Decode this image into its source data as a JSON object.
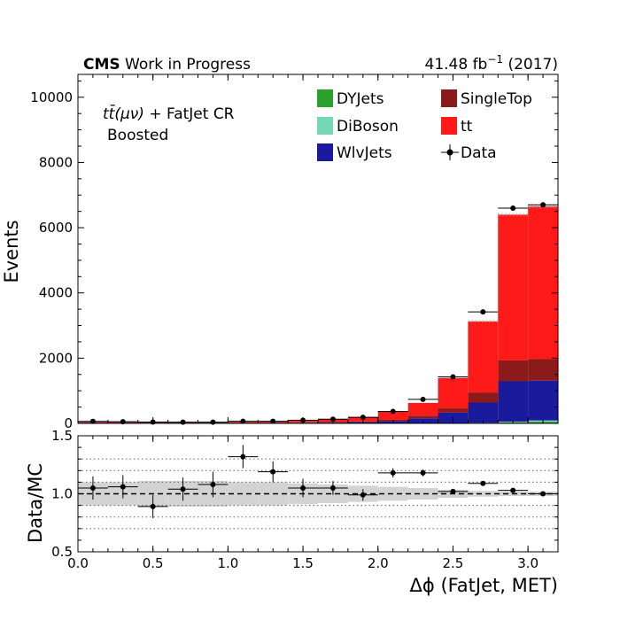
{
  "header": {
    "experiment": "CMS",
    "status": "Work in Progress",
    "lumi": "41.48 fb",
    "lumi_exp": "−1",
    "year": "(2017)"
  },
  "annotation": {
    "line1_math": "tt̄(μν)",
    "line1_rest": " + FatJet CR",
    "line2": "Boosted"
  },
  "colors": {
    "DYJets": "#2ca02c",
    "DiBoson": "#76d7b4",
    "WlvJets": "#1a1a9c",
    "SingleTop": "#8b1a1a",
    "tt": "#ff1a1a",
    "Data": "#000000",
    "uncertainty_band": "#d3d3d3"
  },
  "legend": {
    "placement": "top-right",
    "entries": [
      {
        "label": "DYJets",
        "key": "DYJets",
        "kind": "patch"
      },
      {
        "label": "DiBoson",
        "key": "DiBoson",
        "kind": "patch"
      },
      {
        "label": "WlvJets",
        "key": "WlvJets",
        "kind": "patch"
      },
      {
        "label": "SingleTop",
        "key": "SingleTop",
        "kind": "patch"
      },
      {
        "label": "tt",
        "key": "tt",
        "kind": "patch"
      },
      {
        "label": "Data",
        "key": "Data",
        "kind": "marker"
      }
    ]
  },
  "chart_data": [
    {
      "type": "bar",
      "stacked": true,
      "xlabel": "Δϕ (FatJet, MET)",
      "ylabel": "Events",
      "xlim": [
        0.0,
        3.2
      ],
      "ylim": [
        0,
        10700
      ],
      "yticks": [
        0,
        2000,
        4000,
        6000,
        8000,
        10000
      ],
      "bin_edges": [
        0.0,
        0.2,
        0.4,
        0.6,
        0.8,
        1.0,
        1.2,
        1.4,
        1.6,
        1.8,
        2.0,
        2.2,
        2.4,
        2.6,
        2.8,
        3.0,
        3.2
      ],
      "series": [
        {
          "name": "DYJets",
          "values": [
            1,
            1,
            1,
            1,
            1,
            1,
            1,
            1,
            1,
            2,
            3,
            4,
            6,
            10,
            30,
            50
          ]
        },
        {
          "name": "DiBoson",
          "values": [
            1,
            1,
            1,
            1,
            1,
            1,
            1,
            1,
            1,
            1,
            2,
            3,
            4,
            8,
            20,
            40
          ]
        },
        {
          "name": "WlvJets",
          "values": [
            20,
            18,
            15,
            13,
            14,
            15,
            16,
            18,
            22,
            35,
            60,
            150,
            320,
            620,
            1240,
            1220
          ]
        },
        {
          "name": "SingleTop",
          "values": [
            8,
            8,
            8,
            8,
            8,
            10,
            12,
            15,
            20,
            25,
            45,
            80,
            130,
            310,
            640,
            660
          ]
        },
        {
          "name": "tt",
          "values": [
            30,
            20,
            15,
            12,
            10,
            22,
            25,
            45,
            80,
            130,
            260,
            390,
            930,
            2180,
            4470,
            4680
          ]
        }
      ],
      "data": {
        "name": "Data",
        "values": [
          62,
          52,
          41,
          38,
          36,
          65,
          65,
          95,
          130,
          188,
          365,
          735,
          1425,
          3420,
          6600,
          6700
        ]
      }
    },
    {
      "type": "scatter",
      "ylabel": "Data/MC",
      "xlim": [
        0.0,
        3.2
      ],
      "ylim": [
        0.5,
        1.5
      ],
      "yticks": [
        0.5,
        1.0,
        1.5
      ],
      "xticks": [
        0.0,
        0.5,
        1.0,
        1.5,
        2.0,
        2.5,
        3.0
      ],
      "reference_lines": [
        0.7,
        0.8,
        0.9,
        1.1,
        1.2,
        1.3
      ],
      "unity_line": 1.0,
      "x": [
        0.1,
        0.3,
        0.5,
        0.7,
        0.9,
        1.1,
        1.3,
        1.5,
        1.7,
        1.9,
        2.1,
        2.3,
        2.5,
        2.7,
        2.9,
        3.1
      ],
      "ratio": [
        1.05,
        1.06,
        0.89,
        1.04,
        1.08,
        1.32,
        1.19,
        1.05,
        1.05,
        0.99,
        1.18,
        1.18,
        1.02,
        1.09,
        1.03,
        1.0
      ],
      "ratio_err": [
        0.1,
        0.1,
        0.1,
        0.1,
        0.11,
        0.1,
        0.09,
        0.08,
        0.06,
        0.05,
        0.04,
        0.03,
        0.02,
        0.01,
        0.01,
        0.01
      ],
      "band_halfwidth": [
        0.1,
        0.1,
        0.11,
        0.11,
        0.11,
        0.1,
        0.1,
        0.09,
        0.08,
        0.07,
        0.06,
        0.05,
        0.035,
        0.025,
        0.02,
        0.02
      ]
    }
  ]
}
